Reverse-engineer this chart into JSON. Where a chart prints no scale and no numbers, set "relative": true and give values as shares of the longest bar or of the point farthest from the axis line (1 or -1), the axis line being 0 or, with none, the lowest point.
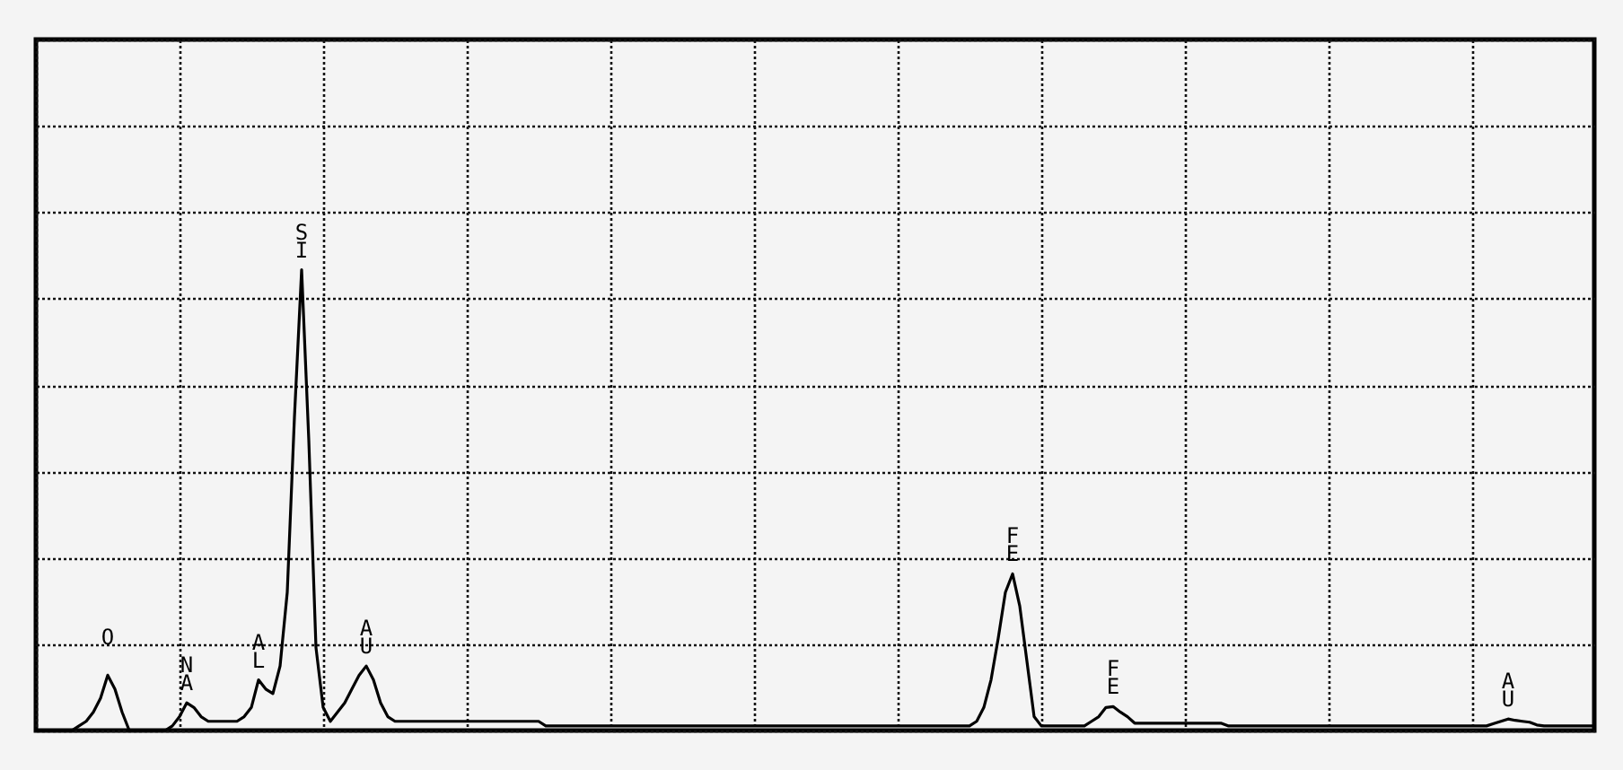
{
  "chart_data": {
    "type": "line",
    "relative": true,
    "grid": true,
    "categories": [
      null,
      null,
      null,
      null,
      null,
      null,
      null,
      null,
      null,
      null,
      null,
      null,
      null,
      null,
      null,
      null,
      null,
      null,
      null,
      null,
      null,
      null,
      null,
      null,
      null,
      null,
      null,
      null,
      null,
      null,
      null,
      null,
      null,
      null,
      null,
      null,
      null,
      null,
      null,
      null,
      null,
      null,
      null,
      null,
      null,
      null,
      null,
      null,
      null,
      null,
      null,
      null,
      null,
      null,
      null,
      null,
      null,
      null,
      null,
      null,
      null,
      null,
      null,
      null,
      null,
      null,
      null,
      null,
      null,
      null,
      null,
      null,
      null,
      null,
      null,
      null,
      null,
      null,
      null,
      null,
      null,
      null,
      null,
      null,
      null,
      null,
      null,
      null,
      null,
      null,
      null,
      null,
      null,
      null,
      null,
      null,
      null,
      null,
      null,
      null,
      null,
      null,
      null,
      null,
      null,
      null,
      null,
      null,
      null,
      null,
      null,
      null,
      null,
      null,
      null,
      null,
      null,
      null,
      null,
      null,
      null,
      null,
      null,
      null,
      null,
      null,
      null,
      null,
      null,
      null,
      null,
      null,
      null,
      null,
      null,
      null,
      null,
      null,
      null,
      null,
      null,
      null,
      null,
      null,
      null,
      null,
      null,
      null,
      null,
      null,
      null,
      null,
      null,
      null,
      null,
      null,
      null,
      null,
      null,
      null,
      null,
      null,
      null,
      null,
      null,
      null,
      null,
      null,
      null,
      null,
      null,
      null,
      null,
      null,
      null,
      null,
      null,
      null,
      null,
      null,
      null,
      null,
      null,
      null,
      null,
      null,
      null,
      null,
      null,
      null,
      null,
      null,
      null,
      null,
      null,
      null,
      null,
      null,
      null,
      null,
      null,
      null,
      null,
      null,
      null,
      null,
      null,
      null,
      null,
      null,
      null,
      null,
      null,
      null,
      null,
      null,
      null,
      null
    ],
    "series": [
      {
        "color": "#000000",
        "values": [
          0,
          0,
          0,
          0,
          0,
          0,
          0.01,
          0.02,
          0.04,
          0.07,
          0.12,
          0.09,
          0.04,
          0,
          0,
          0,
          0,
          0,
          0,
          0.01,
          0.03,
          0.06,
          0.05,
          0.03,
          0.02,
          0.02,
          0.02,
          0.02,
          0.02,
          0.03,
          0.05,
          0.11,
          0.09,
          0.08,
          0.14,
          0.3,
          0.68,
          1.0,
          0.63,
          0.18,
          0.05,
          0.02,
          0.04,
          0.06,
          0.09,
          0.12,
          0.14,
          0.11,
          0.06,
          0.03,
          0.02,
          0.02,
          0.02,
          0.02,
          0.02,
          0.02,
          0.02,
          0.02,
          0.02,
          0.02,
          0.02,
          0.02,
          0.02,
          0.02,
          0.02,
          0.02,
          0.02,
          0.02,
          0.02,
          0.02,
          0.02,
          0.01,
          0.01,
          0.01,
          0.01,
          0.01,
          0.01,
          0.01,
          0.01,
          0.01,
          0.01,
          0.01,
          0.01,
          0.01,
          0.01,
          0.01,
          0.01,
          0.01,
          0.01,
          0.01,
          0.01,
          0.01,
          0.01,
          0.01,
          0.01,
          0.01,
          0.01,
          0.01,
          0.01,
          0.01,
          0.01,
          0.01,
          0.01,
          0.01,
          0.01,
          0.01,
          0.01,
          0.01,
          0.01,
          0.01,
          0.01,
          0.01,
          0.01,
          0.01,
          0.01,
          0.01,
          0.01,
          0.01,
          0.01,
          0.01,
          0.01,
          0.01,
          0.01,
          0.01,
          0.01,
          0.01,
          0.01,
          0.01,
          0.01,
          0.01,
          0.01,
          0.02,
          0.05,
          0.11,
          0.2,
          0.3,
          0.34,
          0.27,
          0.15,
          0.03,
          0.01,
          0.01,
          0.01,
          0.01,
          0.01,
          0.01,
          0.01,
          0.02,
          0.03,
          0.05,
          0.052,
          0.04,
          0.03,
          0.016,
          0.016,
          0.016,
          0.016,
          0.016,
          0.016,
          0.016,
          0.016,
          0.016,
          0.016,
          0.016,
          0.016,
          0.016,
          0.01,
          0.01,
          0.01,
          0.01,
          0.01,
          0.01,
          0.01,
          0.01,
          0.01,
          0.01,
          0.01,
          0.01,
          0.01,
          0.01,
          0.01,
          0.01,
          0.01,
          0.01,
          0.01,
          0.01,
          0.01,
          0.01,
          0.01,
          0.01,
          0.01,
          0.01,
          0.01,
          0.01,
          0.01,
          0.01,
          0.01,
          0.01,
          0.01,
          0.01,
          0.01,
          0.01,
          0.01,
          0.015,
          0.02,
          0.025,
          0.022,
          0.02,
          0.018,
          0.012,
          0.01,
          0.01,
          0.01,
          0.01,
          0.01,
          0.01,
          0.01,
          0.01
        ]
      }
    ],
    "annotations": [
      "O",
      "NA",
      "AL",
      "SI",
      "AU",
      "FE",
      "FE",
      "AU"
    ]
  }
}
